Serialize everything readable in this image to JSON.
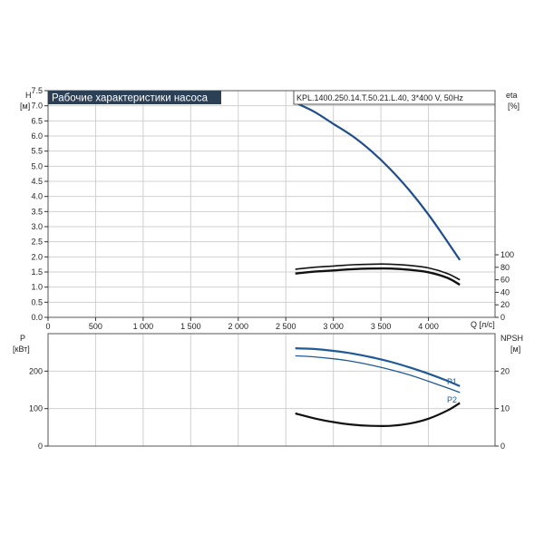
{
  "title_box": "Рабочие характеристики насоса",
  "model_box": "KPL.1400.250.14.T.50.21.L.40, 3*400 V, 50Hz",
  "colors": {
    "head_curve": "#1f4e8c",
    "eta_curve": "#111111",
    "p1_curve": "#1f5a96",
    "p2_curve": "#1f5a96",
    "npsh_curve": "#111111",
    "title_bg": "#2b3f55",
    "title_fg": "#ffffff"
  },
  "chart_data": [
    {
      "type": "line",
      "panel": "top",
      "ylabel_left": "H",
      "ylabel_left_unit": "[м]",
      "ylabel_right": "eta",
      "ylabel_right_unit": "[%]",
      "xlabel": "Q [л/с]",
      "xlim": [
        0,
        4700
      ],
      "ylim": [
        0,
        7.5
      ],
      "x_ticks": [
        "0",
        "500",
        "1 000",
        "1 500",
        "2 000",
        "2 500",
        "3 000",
        "3 500",
        "4 000"
      ],
      "y_ticks": [
        "0.0",
        "0.5",
        "1.0",
        "1.5",
        "2.0",
        "2.5",
        "3.0",
        "3.5",
        "4.0",
        "4.5",
        "5.0",
        "5.5",
        "6.0",
        "6.5",
        "7.0",
        "7.5"
      ],
      "y2_ticks": [
        "0",
        "20",
        "40",
        "60",
        "80",
        "100"
      ],
      "y2lim": [
        0,
        100
      ],
      "grid": true,
      "series": [
        {
          "axis": "left",
          "x": [
            2600,
            2800,
            3000,
            3200,
            3400,
            3600,
            3800,
            4000,
            4200,
            4330
          ],
          "values": [
            7.1,
            6.8,
            6.4,
            6.0,
            5.5,
            4.9,
            4.2,
            3.4,
            2.5,
            1.9
          ]
        },
        {
          "axis": "right",
          "x": [
            2600,
            2800,
            3000,
            3200,
            3400,
            3600,
            3800,
            4000,
            4200,
            4330
          ],
          "values": [
            77,
            80,
            82,
            84,
            85,
            85,
            83,
            79,
            70,
            60
          ]
        },
        {
          "axis": "right",
          "x": [
            2600,
            2800,
            3000,
            3200,
            3400,
            3600,
            3800,
            4000,
            4200,
            4330
          ],
          "values": [
            70,
            73,
            75,
            77,
            78,
            78,
            76,
            72,
            63,
            52
          ]
        }
      ]
    },
    {
      "type": "line",
      "panel": "bottom",
      "ylabel_left": "P",
      "ylabel_left_unit": "[кВт]",
      "ylabel_right": "NPSH",
      "ylabel_right_unit": "[м]",
      "xlim": [
        0,
        4700
      ],
      "ylim": [
        0,
        300
      ],
      "y_ticks": [
        "0",
        "100",
        "200"
      ],
      "y2lim": [
        0,
        30
      ],
      "y2_ticks": [
        "0",
        "10",
        "20"
      ],
      "grid": true,
      "series": [
        {
          "name": "P1",
          "axis": "left",
          "x": [
            2600,
            2800,
            3000,
            3200,
            3400,
            3600,
            3800,
            4000,
            4200,
            4330
          ],
          "values": [
            261,
            259,
            254,
            247,
            237,
            225,
            210,
            193,
            174,
            160
          ]
        },
        {
          "name": "P2",
          "axis": "left",
          "x": [
            2600,
            2800,
            3000,
            3200,
            3400,
            3600,
            3800,
            4000,
            4200,
            4330
          ],
          "values": [
            241,
            238,
            233,
            226,
            216,
            204,
            190,
            173,
            155,
            143
          ]
        },
        {
          "axis": "right",
          "x": [
            2600,
            2800,
            3000,
            3200,
            3400,
            3600,
            3800,
            4000,
            4200,
            4330
          ],
          "values": [
            8.7,
            7.4,
            6.4,
            5.7,
            5.4,
            5.4,
            6.0,
            7.3,
            9.5,
            11.5
          ]
        }
      ]
    }
  ]
}
